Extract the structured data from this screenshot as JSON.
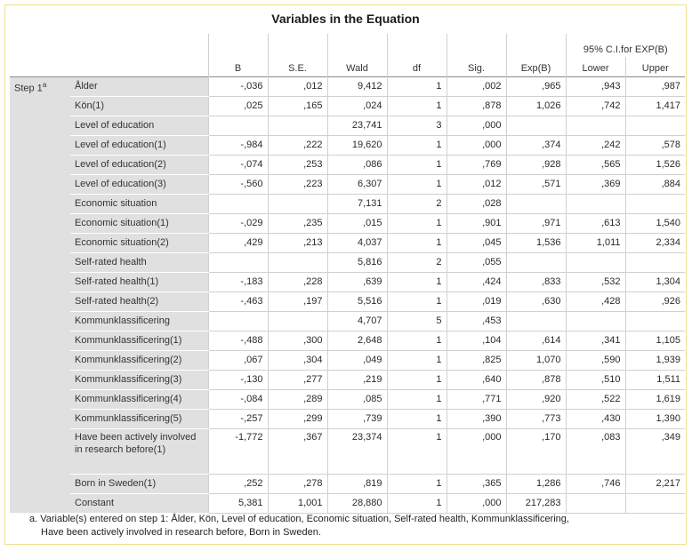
{
  "title": "Variables in the Equation",
  "ci_header": "95% C.I.for EXP(B)",
  "columns": [
    "B",
    "S.E.",
    "Wald",
    "df",
    "Sig.",
    "Exp(B)",
    "Lower",
    "Upper"
  ],
  "step_label": "Step 1",
  "step_sup": "a",
  "rows": [
    {
      "label": "Ålder",
      "values": [
        "-,036",
        ",012",
        "9,412",
        "1",
        ",002",
        ",965",
        ",943",
        ",987"
      ]
    },
    {
      "label": "Kön(1)",
      "values": [
        ",025",
        ",165",
        ",024",
        "1",
        ",878",
        "1,026",
        ",742",
        "1,417"
      ]
    },
    {
      "label": "Level of education",
      "values": [
        "",
        "",
        "23,741",
        "3",
        ",000",
        "",
        "",
        ""
      ]
    },
    {
      "label": "Level of education(1)",
      "values": [
        "-,984",
        ",222",
        "19,620",
        "1",
        ",000",
        ",374",
        ",242",
        ",578"
      ]
    },
    {
      "label": "Level of education(2)",
      "values": [
        "-,074",
        ",253",
        ",086",
        "1",
        ",769",
        ",928",
        ",565",
        "1,526"
      ]
    },
    {
      "label": "Level of education(3)",
      "values": [
        "-,560",
        ",223",
        "6,307",
        "1",
        ",012",
        ",571",
        ",369",
        ",884"
      ]
    },
    {
      "label": "Economic situation",
      "values": [
        "",
        "",
        "7,131",
        "2",
        ",028",
        "",
        "",
        ""
      ]
    },
    {
      "label": "Economic situation(1)",
      "values": [
        "-,029",
        ",235",
        ",015",
        "1",
        ",901",
        ",971",
        ",613",
        "1,540"
      ]
    },
    {
      "label": "Economic situation(2)",
      "values": [
        ",429",
        ",213",
        "4,037",
        "1",
        ",045",
        "1,536",
        "1,011",
        "2,334"
      ]
    },
    {
      "label": "Self-rated health",
      "values": [
        "",
        "",
        "5,816",
        "2",
        ",055",
        "",
        "",
        ""
      ]
    },
    {
      "label": "Self-rated health(1)",
      "values": [
        "-,183",
        ",228",
        ",639",
        "1",
        ",424",
        ",833",
        ",532",
        "1,304"
      ]
    },
    {
      "label": "Self-rated health(2)",
      "values": [
        "-,463",
        ",197",
        "5,516",
        "1",
        ",019",
        ",630",
        ",428",
        ",926"
      ]
    },
    {
      "label": "Kommunklassificering",
      "values": [
        "",
        "",
        "4,707",
        "5",
        ",453",
        "",
        "",
        ""
      ]
    },
    {
      "label": "Kommunklassificering(1)",
      "values": [
        "-,488",
        ",300",
        "2,648",
        "1",
        ",104",
        ",614",
        ",341",
        "1,105"
      ]
    },
    {
      "label": "Kommunklassificering(2)",
      "values": [
        ",067",
        ",304",
        ",049",
        "1",
        ",825",
        "1,070",
        ",590",
        "1,939"
      ]
    },
    {
      "label": "Kommunklassificering(3)",
      "values": [
        "-,130",
        ",277",
        ",219",
        "1",
        ",640",
        ",878",
        ",510",
        "1,511"
      ]
    },
    {
      "label": "Kommunklassificering(4)",
      "values": [
        "-,084",
        ",289",
        ",085",
        "1",
        ",771",
        ",920",
        ",522",
        "1,619"
      ]
    },
    {
      "label": "Kommunklassificering(5)",
      "values": [
        "-,257",
        ",299",
        ",739",
        "1",
        ",390",
        ",773",
        ",430",
        "1,390"
      ]
    },
    {
      "label": "Have been actively involved in research before(1)",
      "values": [
        "-1,772",
        ",367",
        "23,374",
        "1",
        ",000",
        ",170",
        ",083",
        ",349"
      ],
      "tall": true
    },
    {
      "label": "Born in Sweden(1)",
      "values": [
        ",252",
        ",278",
        ",819",
        "1",
        ",365",
        "1,286",
        ",746",
        "2,217"
      ]
    },
    {
      "label": "Constant",
      "values": [
        "5,381",
        "1,001",
        "28,880",
        "1",
        ",000",
        "217,283",
        "",
        ""
      ]
    }
  ],
  "footnote": {
    "line1": "a. Variable(s) entered on step 1: Ålder, Kön, Level of education, Economic situation, Self-rated health, Kommunklassificering,",
    "line2": "Have been actively involved in research before, Born in Sweden."
  }
}
